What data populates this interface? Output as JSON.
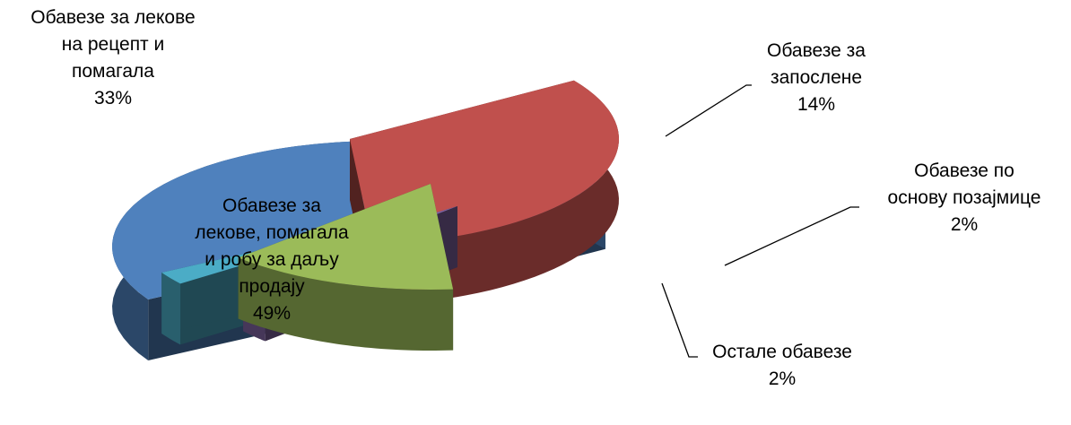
{
  "chart_data": {
    "type": "pie",
    "title": "",
    "style": "3d-exploded",
    "slices": [
      {
        "lines": [
          "Обавезе за",
          "лекове, помагала",
          "и робу за даљу",
          "продају"
        ],
        "pct_label": "49%",
        "value": 49,
        "color": "#4F81BD"
      },
      {
        "lines": [
          "Обавезе за лекове",
          "на рецепт и",
          "помагала"
        ],
        "pct_label": "33%",
        "value": 33,
        "color": "#C0504D"
      },
      {
        "lines": [
          "Обавезе за",
          "запослене"
        ],
        "pct_label": "14%",
        "value": 14,
        "color": "#9BBB59"
      },
      {
        "lines": [
          "Обавезе по",
          "основу позајмице"
        ],
        "pct_label": "2%",
        "value": 2,
        "color": "#8064A2"
      },
      {
        "lines": [
          "Остале обавезе"
        ],
        "pct_label": "2%",
        "value": 2,
        "color": "#4BACC6"
      }
    ]
  }
}
